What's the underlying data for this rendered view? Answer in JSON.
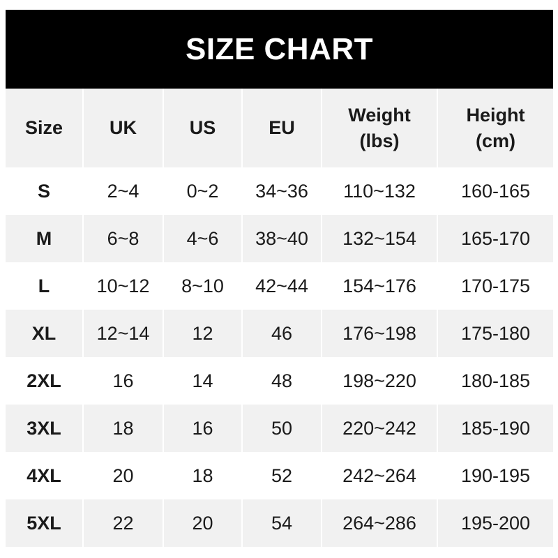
{
  "title": "SIZE CHART",
  "chart_data": {
    "type": "table",
    "title": "SIZE CHART",
    "columns": [
      "Size",
      "UK",
      "US",
      "EU",
      "Weight\n(lbs)",
      "Height\n(cm)"
    ],
    "rows": [
      [
        "S",
        "2~4",
        "0~2",
        "34~36",
        "110~132",
        "160-165"
      ],
      [
        "M",
        "6~8",
        "4~6",
        "38~40",
        "132~154",
        "165-170"
      ],
      [
        "L",
        "10~12",
        "8~10",
        "42~44",
        "154~176",
        "170-175"
      ],
      [
        "XL",
        "12~14",
        "12",
        "46",
        "176~198",
        "175-180"
      ],
      [
        "2XL",
        "16",
        "14",
        "48",
        "198~220",
        "180-185"
      ],
      [
        "3XL",
        "18",
        "16",
        "50",
        "220~242",
        "185-190"
      ],
      [
        "4XL",
        "20",
        "18",
        "52",
        "242~264",
        "190-195"
      ],
      [
        "5XL",
        "22",
        "20",
        "54",
        "264~286",
        "195-200"
      ]
    ]
  },
  "colors": {
    "title_bg": "#000000",
    "title_text": "#ffffff",
    "stripe": "#f1f1f1",
    "text": "#1a1a1a"
  }
}
